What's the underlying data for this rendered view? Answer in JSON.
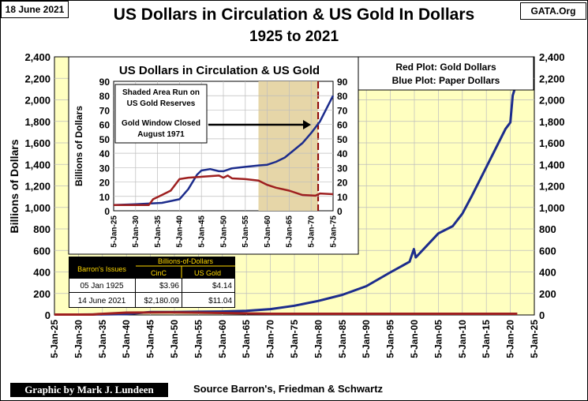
{
  "header": {
    "date": "18 June 2021",
    "site": "GATA.Org",
    "title": "US Dollars in Circulation & US Gold In Dollars",
    "subtitle": "1925 to 2021"
  },
  "footer": {
    "credit": "Graphic by Mark J. Lundeen",
    "source": "Source Barron's, Friedman & Schwartz"
  },
  "legend": {
    "line1": "Red Plot: Gold Dollars",
    "line2": "Blue Plot: Paper Dollars"
  },
  "colors": {
    "plot_bg": "#FFFFC0",
    "paper": "#1C2C8C",
    "gold": "#9E1F1F",
    "shade": "#E6D6A8"
  },
  "chart_data": [
    {
      "type": "line",
      "title": "US Dollars in Circulation & US Gold In Dollars",
      "ylabel": "Billions of Dollars",
      "xlabel": "",
      "xlim": [
        1925,
        2025
      ],
      "ylim": [
        0,
        2400
      ],
      "yticks": [
        0,
        200,
        400,
        600,
        800,
        "1,000",
        "1,200",
        "1,400",
        "1,600",
        "1,800",
        "2,000",
        "2,200",
        "2,400"
      ],
      "xticks": [
        "5-Jan-25",
        "5-Jan-30",
        "5-Jan-35",
        "5-Jan-40",
        "5-Jan-45",
        "5-Jan-50",
        "5-Jan-55",
        "5-Jan-60",
        "5-Jan-65",
        "5-Jan-70",
        "5-Jan-75",
        "5-Jan-80",
        "5-Jan-85",
        "5-Jan-90",
        "5-Jan-95",
        "5-Jan-00",
        "5-Jan-05",
        "5-Jan-10",
        "5-Jan-15",
        "5-Jan-20",
        "5-Jan-25"
      ],
      "series": [
        {
          "name": "Paper Dollars",
          "points": [
            [
              1925,
              4
            ],
            [
              1930,
              4
            ],
            [
              1935,
              5
            ],
            [
              1940,
              8
            ],
            [
              1945,
              27
            ],
            [
              1950,
              27
            ],
            [
              1955,
              30
            ],
            [
              1960,
              32
            ],
            [
              1965,
              39
            ],
            [
              1970,
              54
            ],
            [
              1975,
              86
            ],
            [
              1980,
              131
            ],
            [
              1985,
              187
            ],
            [
              1990,
              268
            ],
            [
              1995,
              396
            ],
            [
              1999,
              495
            ],
            [
              1999.9,
              612
            ],
            [
              2000.3,
              535
            ],
            [
              2005,
              758
            ],
            [
              2008,
              826
            ],
            [
              2010,
              942
            ],
            [
              2012,
              1110
            ],
            [
              2015,
              1375
            ],
            [
              2019,
              1730
            ],
            [
              2020,
              1790
            ],
            [
              2020.5,
              2040
            ],
            [
              2021.45,
              2180
            ]
          ]
        },
        {
          "name": "Gold Dollars",
          "points": [
            [
              1925,
              4
            ],
            [
              1933,
              4
            ],
            [
              1934,
              8
            ],
            [
              1940,
              22
            ],
            [
              1949,
              24
            ],
            [
              1960,
              18
            ],
            [
              1970,
              11
            ],
            [
              1980,
              11
            ],
            [
              2000,
              11
            ],
            [
              2021.45,
              11
            ]
          ]
        }
      ]
    },
    {
      "type": "line",
      "title": "US Dollars in Circulation & US Gold",
      "ylabel": "Billions of Dollars",
      "xlim": [
        1925,
        1975
      ],
      "ylim": [
        0,
        90
      ],
      "yticks": [
        0,
        10,
        20,
        30,
        40,
        50,
        60,
        70,
        80,
        90
      ],
      "xticks": [
        "5-Jan-25",
        "5-Jan-30",
        "5-Jan-35",
        "5-Jan-40",
        "5-Jan-45",
        "5-Jan-50",
        "5-Jan-55",
        "5-Jan-60",
        "5-Jan-65",
        "5-Jan-70",
        "5-Jan-75"
      ],
      "shaded_range": [
        1958,
        1971.6
      ],
      "annotation_line": 1971.6,
      "annotations": [
        "Shaded Area Run on US Gold Reserves",
        "Gold Window Closed August 1971"
      ],
      "series": [
        {
          "name": "Paper Dollars",
          "points": [
            [
              1925,
              4
            ],
            [
              1930,
              4.5
            ],
            [
              1933,
              5
            ],
            [
              1936,
              5.5
            ],
            [
              1940,
              8
            ],
            [
              1942,
              15
            ],
            [
              1944,
              25
            ],
            [
              1945,
              28
            ],
            [
              1947,
              29
            ],
            [
              1949,
              27.5
            ],
            [
              1950,
              27.5
            ],
            [
              1952,
              29.5
            ],
            [
              1955,
              30.5
            ],
            [
              1958,
              31.5
            ],
            [
              1960,
              32
            ],
            [
              1962,
              34
            ],
            [
              1964,
              37
            ],
            [
              1966,
              42
            ],
            [
              1968,
              47
            ],
            [
              1970,
              54
            ],
            [
              1972,
              62
            ],
            [
              1974,
              74
            ],
            [
              1975,
              80
            ]
          ]
        },
        {
          "name": "Gold Dollars",
          "points": [
            [
              1925,
              4
            ],
            [
              1930,
              4
            ],
            [
              1933,
              4
            ],
            [
              1934,
              8
            ],
            [
              1936,
              11
            ],
            [
              1938,
              14
            ],
            [
              1940,
              22
            ],
            [
              1942,
              23
            ],
            [
              1949,
              24.5
            ],
            [
              1950,
              23
            ],
            [
              1951,
              24.5
            ],
            [
              1952,
              22.5
            ],
            [
              1955,
              22
            ],
            [
              1958,
              21
            ],
            [
              1960,
              18
            ],
            [
              1962,
              16
            ],
            [
              1965,
              14
            ],
            [
              1968,
              11
            ],
            [
              1971,
              10.5
            ],
            [
              1972,
              12
            ],
            [
              1975,
              11.5
            ]
          ]
        }
      ]
    }
  ],
  "table": {
    "title": "Billions-of-Dollars",
    "row_header": "Barron's Issues",
    "columns": [
      "CinC",
      "US Gold"
    ],
    "rows": [
      {
        "date": "05 Jan 1925",
        "cinc": "$3.96",
        "gold": "$4.14"
      },
      {
        "date": "14 June 2021",
        "cinc": "$2,180.09",
        "gold": "$11.04"
      }
    ]
  }
}
